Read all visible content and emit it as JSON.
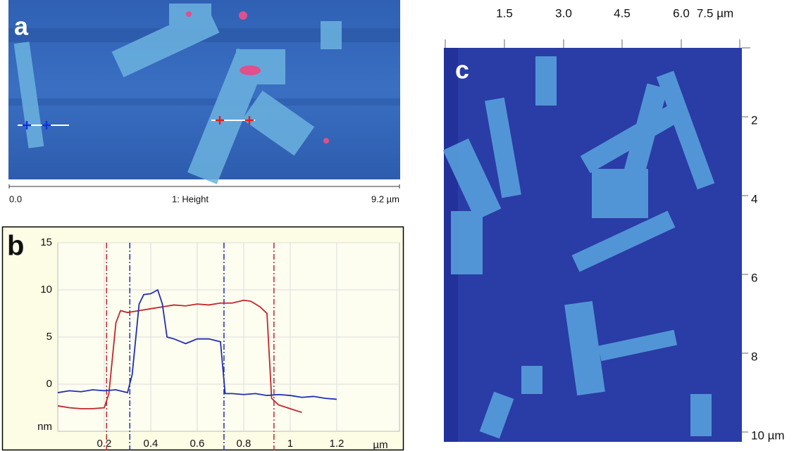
{
  "panels": {
    "a": {
      "label": "a",
      "scale_start": "0.0",
      "scale_title": "1: Height",
      "scale_end": "9.2 µm"
    },
    "c": {
      "label": "c",
      "top_ticks": [
        "1.5",
        "3.0",
        "4.5",
        "6.0",
        "7.5 µm"
      ],
      "right_ticks": [
        "2",
        "4",
        "6",
        "8",
        "10 µm"
      ]
    }
  },
  "chart_data": {
    "type": "line",
    "label": "b",
    "y_label": "nm",
    "x_label": "µm",
    "xlim": [
      0,
      1.47
    ],
    "ylim": [
      -5,
      15
    ],
    "xticks": [
      0.2,
      0.4,
      0.6,
      0.8,
      1,
      1.2
    ],
    "yticks": [
      0,
      5,
      10,
      15
    ],
    "grid": true,
    "cursors": [
      {
        "color": "#c0282a",
        "x": 0.21
      },
      {
        "color": "#2030b0",
        "x": 0.31
      },
      {
        "color": "#2030b0",
        "x": 0.715
      },
      {
        "color": "#c0282a",
        "x": 0.93
      }
    ],
    "series": [
      {
        "color": "#c0282a",
        "x": [
          0,
          0.05,
          0.1,
          0.15,
          0.2,
          0.22,
          0.25,
          0.27,
          0.3,
          0.35,
          0.4,
          0.45,
          0.5,
          0.55,
          0.6,
          0.65,
          0.7,
          0.75,
          0.8,
          0.83,
          0.87,
          0.9,
          0.92,
          0.95,
          1,
          1.05
        ],
        "values": [
          -2.3,
          -2.5,
          -2.6,
          -2.6,
          -2.5,
          -1,
          6.5,
          7.8,
          7.6,
          7.8,
          8,
          8.2,
          8.4,
          8.3,
          8.5,
          8.4,
          8.6,
          8.6,
          8.9,
          8.8,
          8.2,
          7.5,
          -1.5,
          -2.2,
          -2.6,
          -3
        ]
      },
      {
        "color": "#2030b0",
        "x": [
          0,
          0.05,
          0.1,
          0.15,
          0.2,
          0.25,
          0.3,
          0.32,
          0.35,
          0.37,
          0.4,
          0.43,
          0.45,
          0.47,
          0.5,
          0.55,
          0.6,
          0.65,
          0.7,
          0.72,
          0.75,
          0.8,
          0.85,
          0.9,
          0.95,
          1,
          1.05,
          1.1,
          1.15,
          1.2
        ],
        "values": [
          -0.9,
          -0.7,
          -0.8,
          -0.6,
          -0.7,
          -0.6,
          -0.9,
          1,
          8.5,
          9.5,
          9.6,
          10,
          8.5,
          5,
          4.8,
          4.3,
          4.8,
          4.8,
          4.5,
          -1,
          -1,
          -1.1,
          -1,
          -1.2,
          -1.1,
          -1.2,
          -1.4,
          -1.3,
          -1.5,
          -1.6
        ]
      }
    ]
  }
}
